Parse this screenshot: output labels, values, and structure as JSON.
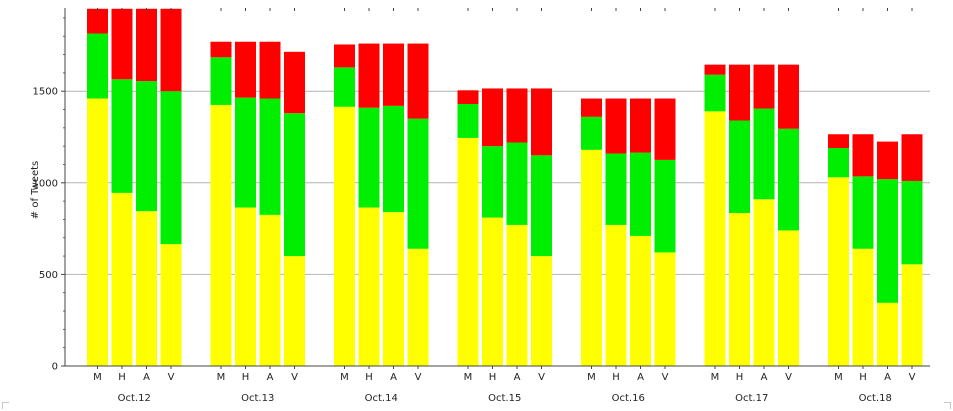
{
  "chart_data": {
    "type": "bar",
    "stacked": true,
    "ylabel": "# of Tweets",
    "xlabel": "",
    "title": "",
    "ylim": [
      0,
      1950
    ],
    "yticks": [
      0,
      500,
      1000,
      1500
    ],
    "grid": true,
    "colors": {
      "bottom": "#ffff00",
      "middle": "#00ee00",
      "top": "#ff0000"
    },
    "groups": [
      {
        "label": "Oct.12",
        "bars": [
          {
            "label": "M",
            "bottom": 1460,
            "middle": 355,
            "top": 135
          },
          {
            "label": "H",
            "bottom": 945,
            "middle": 620,
            "top": 385
          },
          {
            "label": "A",
            "bottom": 845,
            "middle": 710,
            "top": 395
          },
          {
            "label": "V",
            "bottom": 665,
            "middle": 835,
            "top": 450
          }
        ]
      },
      {
        "label": "Oct.13",
        "bars": [
          {
            "label": "M",
            "bottom": 1425,
            "middle": 260,
            "top": 85
          },
          {
            "label": "H",
            "bottom": 865,
            "middle": 600,
            "top": 305
          },
          {
            "label": "A",
            "bottom": 825,
            "middle": 635,
            "top": 310
          },
          {
            "label": "V",
            "bottom": 600,
            "middle": 780,
            "top": 335
          }
        ]
      },
      {
        "label": "Oct.14",
        "bars": [
          {
            "label": "M",
            "bottom": 1415,
            "middle": 215,
            "top": 125
          },
          {
            "label": "H",
            "bottom": 865,
            "middle": 545,
            "top": 350
          },
          {
            "label": "A",
            "bottom": 840,
            "middle": 580,
            "top": 340
          },
          {
            "label": "V",
            "bottom": 640,
            "middle": 710,
            "top": 410
          }
        ]
      },
      {
        "label": "Oct.15",
        "bars": [
          {
            "label": "M",
            "bottom": 1245,
            "middle": 185,
            "top": 75
          },
          {
            "label": "H",
            "bottom": 810,
            "middle": 390,
            "top": 315
          },
          {
            "label": "A",
            "bottom": 770,
            "middle": 450,
            "top": 295
          },
          {
            "label": "V",
            "bottom": 600,
            "middle": 550,
            "top": 365
          }
        ]
      },
      {
        "label": "Oct.16",
        "bars": [
          {
            "label": "M",
            "bottom": 1180,
            "middle": 180,
            "top": 100
          },
          {
            "label": "H",
            "bottom": 770,
            "middle": 390,
            "top": 300
          },
          {
            "label": "A",
            "bottom": 710,
            "middle": 455,
            "top": 295
          },
          {
            "label": "V",
            "bottom": 620,
            "middle": 505,
            "top": 335
          }
        ]
      },
      {
        "label": "Oct.17",
        "bars": [
          {
            "label": "M",
            "bottom": 1390,
            "middle": 200,
            "top": 55
          },
          {
            "label": "H",
            "bottom": 835,
            "middle": 505,
            "top": 305
          },
          {
            "label": "A",
            "bottom": 910,
            "middle": 495,
            "top": 240
          },
          {
            "label": "V",
            "bottom": 740,
            "middle": 555,
            "top": 350
          }
        ]
      },
      {
        "label": "Oct.18",
        "bars": [
          {
            "label": "M",
            "bottom": 1030,
            "middle": 160,
            "top": 75
          },
          {
            "label": "H",
            "bottom": 640,
            "middle": 395,
            "top": 230
          },
          {
            "label": "A",
            "bottom": 345,
            "middle": 675,
            "top": 205
          },
          {
            "label": "V",
            "bottom": 555,
            "middle": 455,
            "top": 255
          }
        ]
      }
    ]
  }
}
